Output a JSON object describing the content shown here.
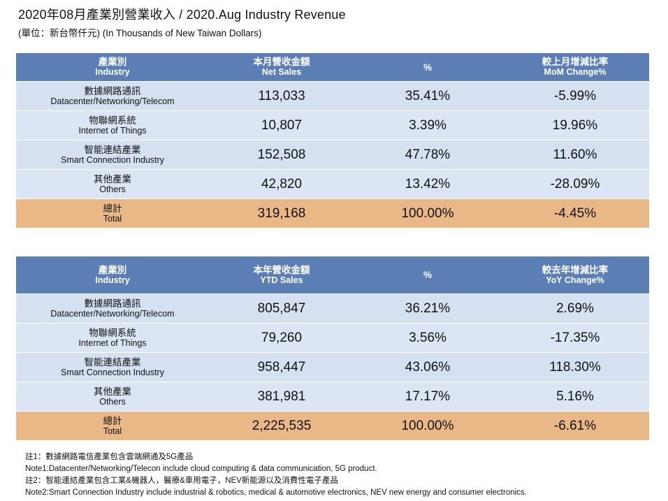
{
  "title": "2020年08月產業別營業收入 / 2020.Aug Industry Revenue",
  "subtitle": "(單位：新台幣仟元) (In Thousands of New Taiwan Dollars)",
  "monthly": {
    "headers": [
      {
        "cn": "產業別",
        "en": "Industry"
      },
      {
        "cn": "本月營收金額",
        "en": "Net Sales"
      },
      {
        "cn": "%",
        "en": ""
      },
      {
        "cn": "較上月增減比率",
        "en": "MoM Change%"
      }
    ],
    "rows": [
      {
        "cn": "數據網路通訊",
        "en": "Datacenter/Networking/Telecom",
        "sales": "113,033",
        "pct": "35.41%",
        "change": "-5.99%"
      },
      {
        "cn": "物聯網系統",
        "en": "Internet of Things",
        "sales": "10,807",
        "pct": "3.39%",
        "change": "19.96%"
      },
      {
        "cn": "智能連結產業",
        "en": "Smart Connection Industry",
        "sales": "152,508",
        "pct": "47.78%",
        "change": "11.60%"
      },
      {
        "cn": "其他產業",
        "en": "Others",
        "sales": "42,820",
        "pct": "13.42%",
        "change": "-28.09%"
      }
    ],
    "total": {
      "cn": "總計",
      "en": "Total",
      "sales": "319,168",
      "pct": "100.00%",
      "change": "-4.45%"
    }
  },
  "ytd": {
    "headers": [
      {
        "cn": "產業別",
        "en": "Industry"
      },
      {
        "cn": "本年營收金額",
        "en": "YTD Sales"
      },
      {
        "cn": "%",
        "en": ""
      },
      {
        "cn": "較去年增減比率",
        "en": "YoY Change%"
      }
    ],
    "rows": [
      {
        "cn": "數據網路通訊",
        "en": "Datacenter/Networking/Telecom",
        "sales": "805,847",
        "pct": "36.21%",
        "change": "2.69%"
      },
      {
        "cn": "物聯網系統",
        "en": "Internet of Things",
        "sales": "79,260",
        "pct": "3.56%",
        "change": "-17.35%"
      },
      {
        "cn": "智能連結產業",
        "en": "Smart Connection Industry",
        "sales": "958,447",
        "pct": "43.06%",
        "change": "118.30%"
      },
      {
        "cn": "其他產業",
        "en": "Others",
        "sales": "381,981",
        "pct": "17.17%",
        "change": "5.16%"
      }
    ],
    "total": {
      "cn": "總計",
      "en": "Total",
      "sales": "2,225,535",
      "pct": "100.00%",
      "change": "-6.61%"
    }
  },
  "notes": [
    "註1：數據網路電信產業包含雲端網通及5G產品",
    "Note1:Datacenter/Networking/Telecon include cloud computing & data communication, 5G product.",
    "註2：智能連結產業包含工業&機器人，醫療&車用電子，NEV新能源以及消費性電子產品",
    "Note2:Smart Connection Industry include industrial & robotics, medical & automotive electronics, NEV new energy and consumer electronics."
  ],
  "colors": {
    "header": "#5b7fb5",
    "row_light": "#d5e0f1",
    "total": "#eab887"
  }
}
